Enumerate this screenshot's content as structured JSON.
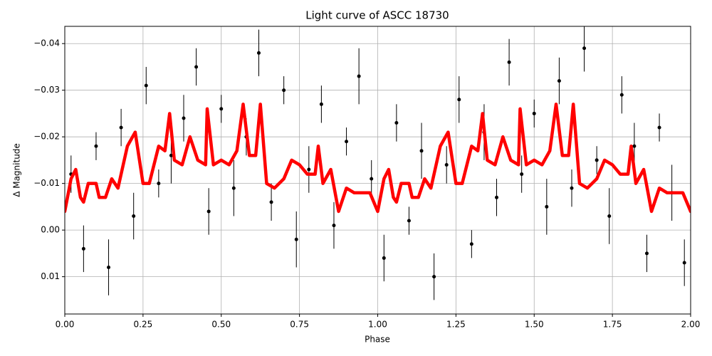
{
  "chart_data": {
    "type": "errorbar",
    "title": "Light curve of ASCC 18730",
    "x_label": "Phase",
    "y_label": "Δ Magnitude",
    "xlim": [
      0,
      2
    ],
    "ylim": [
      -0.0437,
      0.018
    ],
    "y_inverted": true,
    "grid": true,
    "xticks": [
      {
        "value": 0,
        "label": "0.00"
      },
      0.25,
      {
        "value": 0.5,
        "label": "0.50"
      },
      0.75,
      {
        "value": 1,
        "label": "1.00"
      },
      1.25,
      {
        "value": 1.5,
        "label": "1.50"
      },
      1.75,
      {
        "value": 2,
        "label": "2.00"
      }
    ],
    "yticks": [
      {
        "value": -0.04,
        "label": "−0.04"
      },
      {
        "value": -0.03,
        "label": "−0.03"
      },
      {
        "value": -0.02,
        "label": "−0.02"
      },
      {
        "value": -0.01,
        "label": "−0.01"
      },
      {
        "value": 0,
        "label": "0.00"
      },
      0.01
    ],
    "series": [
      {
        "style": "errorbar",
        "color": "#000000",
        "x": [
          0.02,
          0.06,
          0.1,
          0.14,
          0.18,
          0.22,
          0.26,
          0.3,
          0.34,
          0.38,
          0.42,
          0.46,
          0.5,
          0.54,
          0.58,
          0.62,
          0.66,
          0.7,
          0.74,
          0.78,
          0.82,
          0.86,
          0.9,
          0.94,
          0.98,
          1.02,
          1.06,
          1.1,
          1.14,
          1.18,
          1.22,
          1.26,
          1.3,
          1.34,
          1.38,
          1.42,
          1.46,
          1.5,
          1.54,
          1.58,
          1.62,
          1.66,
          1.7,
          1.74,
          1.78,
          1.82,
          1.86,
          1.9,
          1.94,
          1.98
        ],
        "values": [
          -0.012,
          0.004,
          -0.018,
          0.008,
          -0.022,
          -0.003,
          -0.031,
          -0.01,
          -0.016,
          -0.024,
          -0.035,
          -0.004,
          -0.026,
          -0.009,
          -0.02,
          -0.038,
          -0.006,
          -0.03,
          0.002,
          -0.013,
          -0.027,
          -0.001,
          -0.019,
          -0.033,
          -0.011,
          0.006,
          -0.023,
          -0.002,
          -0.017,
          0.01,
          -0.014,
          -0.028,
          0.003,
          -0.021,
          -0.007,
          -0.036,
          -0.012,
          -0.025,
          -0.005,
          -0.032,
          -0.009,
          -0.039,
          -0.015,
          -0.003,
          -0.029,
          -0.018,
          0.005,
          -0.022,
          -0.008,
          0.007
        ],
        "errors": [
          0.004,
          0.005,
          0.003,
          0.006,
          0.004,
          0.005,
          0.004,
          0.003,
          0.006,
          0.005,
          0.004,
          0.005,
          0.003,
          0.006,
          0.004,
          0.005,
          0.004,
          0.003,
          0.006,
          0.005,
          0.004,
          0.005,
          0.003,
          0.006,
          0.004,
          0.005,
          0.004,
          0.003,
          0.006,
          0.005,
          0.004,
          0.005,
          0.003,
          0.006,
          0.004,
          0.005,
          0.004,
          0.003,
          0.006,
          0.005,
          0.004,
          0.005,
          0.003,
          0.006,
          0.004,
          0.005,
          0.004,
          0.003,
          0.006,
          0.005
        ]
      },
      {
        "style": "line",
        "color": "#ff0000",
        "x": [
          0,
          0.02,
          0.035,
          0.05,
          0.06,
          0.075,
          0.1,
          0.11,
          0.13,
          0.15,
          0.17,
          0.2,
          0.225,
          0.25,
          0.27,
          0.3,
          0.32,
          0.335,
          0.35,
          0.375,
          0.4,
          0.425,
          0.45,
          0.455,
          0.475,
          0.5,
          0.525,
          0.55,
          0.57,
          0.59,
          0.61,
          0.625,
          0.645,
          0.67,
          0.7,
          0.725,
          0.75,
          0.775,
          0.8,
          0.81,
          0.825,
          0.85,
          0.875,
          0.9,
          0.925,
          0.95,
          0.975,
          1,
          1.02,
          1.035,
          1.05,
          1.06,
          1.075,
          1.1,
          1.11,
          1.13,
          1.15,
          1.17,
          1.2,
          1.225,
          1.25,
          1.27,
          1.3,
          1.32,
          1.335,
          1.35,
          1.375,
          1.4,
          1.425,
          1.45,
          1.455,
          1.475,
          1.5,
          1.525,
          1.55,
          1.57,
          1.59,
          1.61,
          1.625,
          1.645,
          1.67,
          1.7,
          1.725,
          1.75,
          1.775,
          1.8,
          1.81,
          1.825,
          1.85,
          1.875,
          1.9,
          1.925,
          1.95,
          1.975,
          2
        ],
        "values": [
          -0.004,
          -0.011,
          -0.013,
          -0.007,
          -0.006,
          -0.01,
          -0.01,
          -0.007,
          -0.007,
          -0.011,
          -0.009,
          -0.018,
          -0.021,
          -0.01,
          -0.01,
          -0.018,
          -0.017,
          -0.025,
          -0.015,
          -0.014,
          -0.02,
          -0.015,
          -0.014,
          -0.026,
          -0.014,
          -0.015,
          -0.014,
          -0.017,
          -0.027,
          -0.016,
          -0.016,
          -0.027,
          -0.01,
          -0.009,
          -0.011,
          -0.015,
          -0.014,
          -0.012,
          -0.012,
          -0.018,
          -0.01,
          -0.013,
          -0.004,
          -0.009,
          -0.008,
          -0.008,
          -0.008,
          -0.004,
          -0.011,
          -0.013,
          -0.007,
          -0.006,
          -0.01,
          -0.01,
          -0.007,
          -0.007,
          -0.011,
          -0.009,
          -0.018,
          -0.021,
          -0.01,
          -0.01,
          -0.018,
          -0.017,
          -0.025,
          -0.015,
          -0.014,
          -0.02,
          -0.015,
          -0.014,
          -0.026,
          -0.014,
          -0.015,
          -0.014,
          -0.017,
          -0.027,
          -0.016,
          -0.016,
          -0.027,
          -0.01,
          -0.009,
          -0.011,
          -0.015,
          -0.014,
          -0.012,
          -0.012,
          -0.018,
          -0.01,
          -0.013,
          -0.004,
          -0.009,
          -0.008,
          -0.008,
          -0.008,
          -0.004
        ]
      }
    ]
  }
}
